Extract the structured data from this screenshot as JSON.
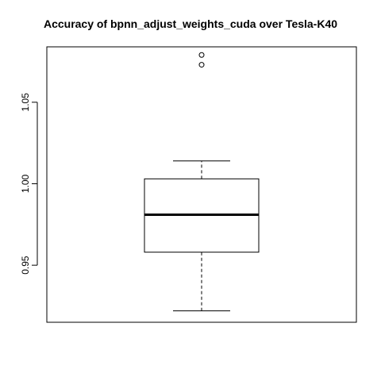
{
  "chart_data": {
    "type": "box",
    "title": "Accuracy of bpnn_adjust_weights_cuda over Tesla-K40",
    "xlabel": "",
    "ylabel": "",
    "ylim": [
      0.915,
      1.084
    ],
    "yticks": [
      0.95,
      1.0,
      1.05
    ],
    "ytick_labels": [
      "0.95",
      "1.00",
      "1.05"
    ],
    "box": {
      "whisker_low": 0.922,
      "q1": 0.958,
      "median": 0.981,
      "q3": 1.003,
      "whisker_high": 1.014,
      "outliers": [
        1.073,
        1.079
      ]
    },
    "grid": false
  },
  "colors": {
    "stroke": "#000000",
    "background": "#ffffff"
  }
}
